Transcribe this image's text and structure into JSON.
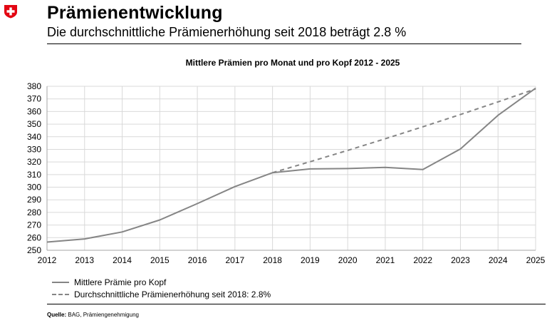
{
  "header": {
    "title": "Prämienentwicklung",
    "subtitle": "Die durchschnittliche Prämienerhöhung seit 2018 beträgt 2.8 %"
  },
  "colors": {
    "logo_red": "#e30613",
    "series": "#858585",
    "grid": "#d9d9d9"
  },
  "chart_data": {
    "type": "line",
    "title": "Mittlere Prämien pro Monat und pro Kopf 2012 - 2025",
    "xlabel": "",
    "ylabel": "",
    "x": [
      2012,
      2013,
      2014,
      2015,
      2016,
      2017,
      2018,
      2019,
      2020,
      2021,
      2022,
      2023,
      2024,
      2025
    ],
    "ylim": [
      250,
      380
    ],
    "yticks": [
      250,
      260,
      270,
      280,
      290,
      300,
      310,
      320,
      330,
      340,
      350,
      360,
      370,
      380
    ],
    "grid": true,
    "legend_position": "bottom-left",
    "series": [
      {
        "name": "Mittlere Prämie pro Kopf",
        "style": "solid",
        "x": [
          2012,
          2013,
          2014,
          2015,
          2016,
          2017,
          2018,
          2019,
          2020,
          2021,
          2022,
          2023,
          2024,
          2025
        ],
        "values": [
          256.5,
          259,
          264.5,
          274,
          287,
          300.5,
          311.5,
          314.5,
          314.8,
          315.7,
          314,
          330.3,
          357,
          378.5
        ]
      },
      {
        "name": "Durchschnittliche Prämienerhöhung seit 2018: 2.8%",
        "style": "dashed",
        "x": [
          2018,
          2019,
          2020,
          2021,
          2022,
          2023,
          2024,
          2025
        ],
        "values": [
          311.5,
          320.2,
          329.2,
          338.4,
          347.9,
          357.6,
          367.6,
          377.9
        ]
      }
    ]
  },
  "source": {
    "label": "Quelle:",
    "text": "BAG, Prämiengenehmigung"
  }
}
